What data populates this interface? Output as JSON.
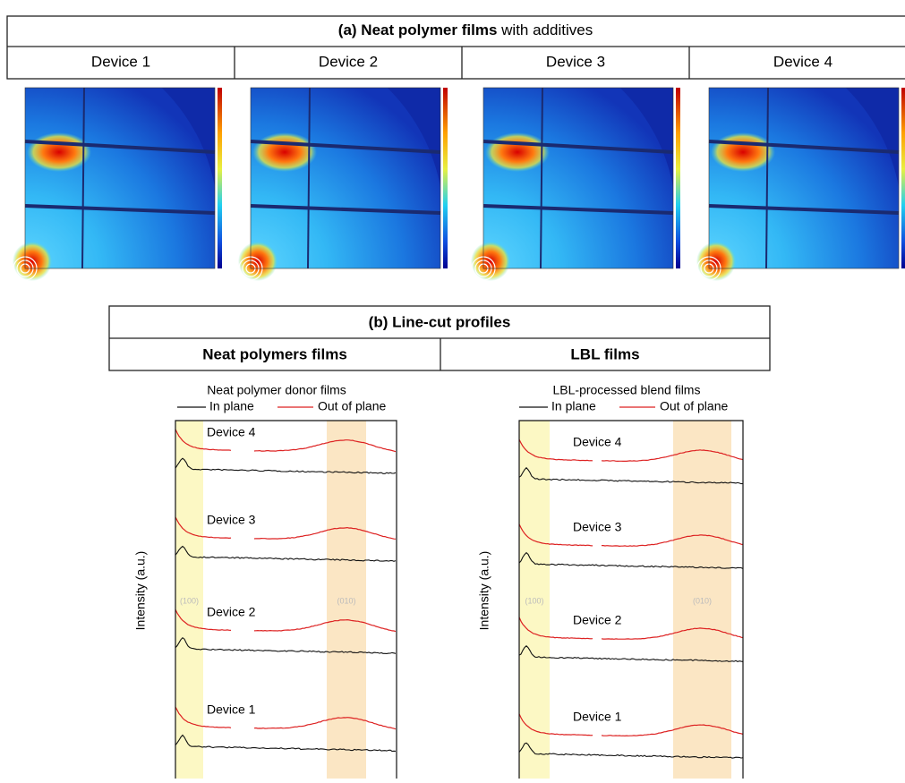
{
  "panel_a": {
    "title_bold": "(a) Neat polymer films",
    "title_rest": "with additives",
    "devices": [
      "Device 1",
      "Device 2",
      "Device 3",
      "Device 4"
    ]
  },
  "panel_b": {
    "title": "(b) Line-cut profiles",
    "columns": [
      "Neat polymers films",
      "LBL films"
    ],
    "plots": [
      {
        "title": "Neat polymer donor films",
        "legend": [
          "In plane",
          "Out of plane"
        ],
        "ylabel": "Intensity (a.u.)",
        "peaks": [
          "(100)",
          "(010)"
        ],
        "traces": [
          "Device 4",
          "Device 3",
          "Device 2",
          "Device 1"
        ]
      },
      {
        "title": "LBL-processed blend films",
        "legend": [
          "In plane",
          "Out of plane"
        ],
        "ylabel": "Intensity (a.u.)",
        "peaks": [
          "(100)",
          "(010)"
        ],
        "traces": [
          "Device 4",
          "Device 3",
          "Device 2",
          "Device 1"
        ]
      }
    ]
  }
}
